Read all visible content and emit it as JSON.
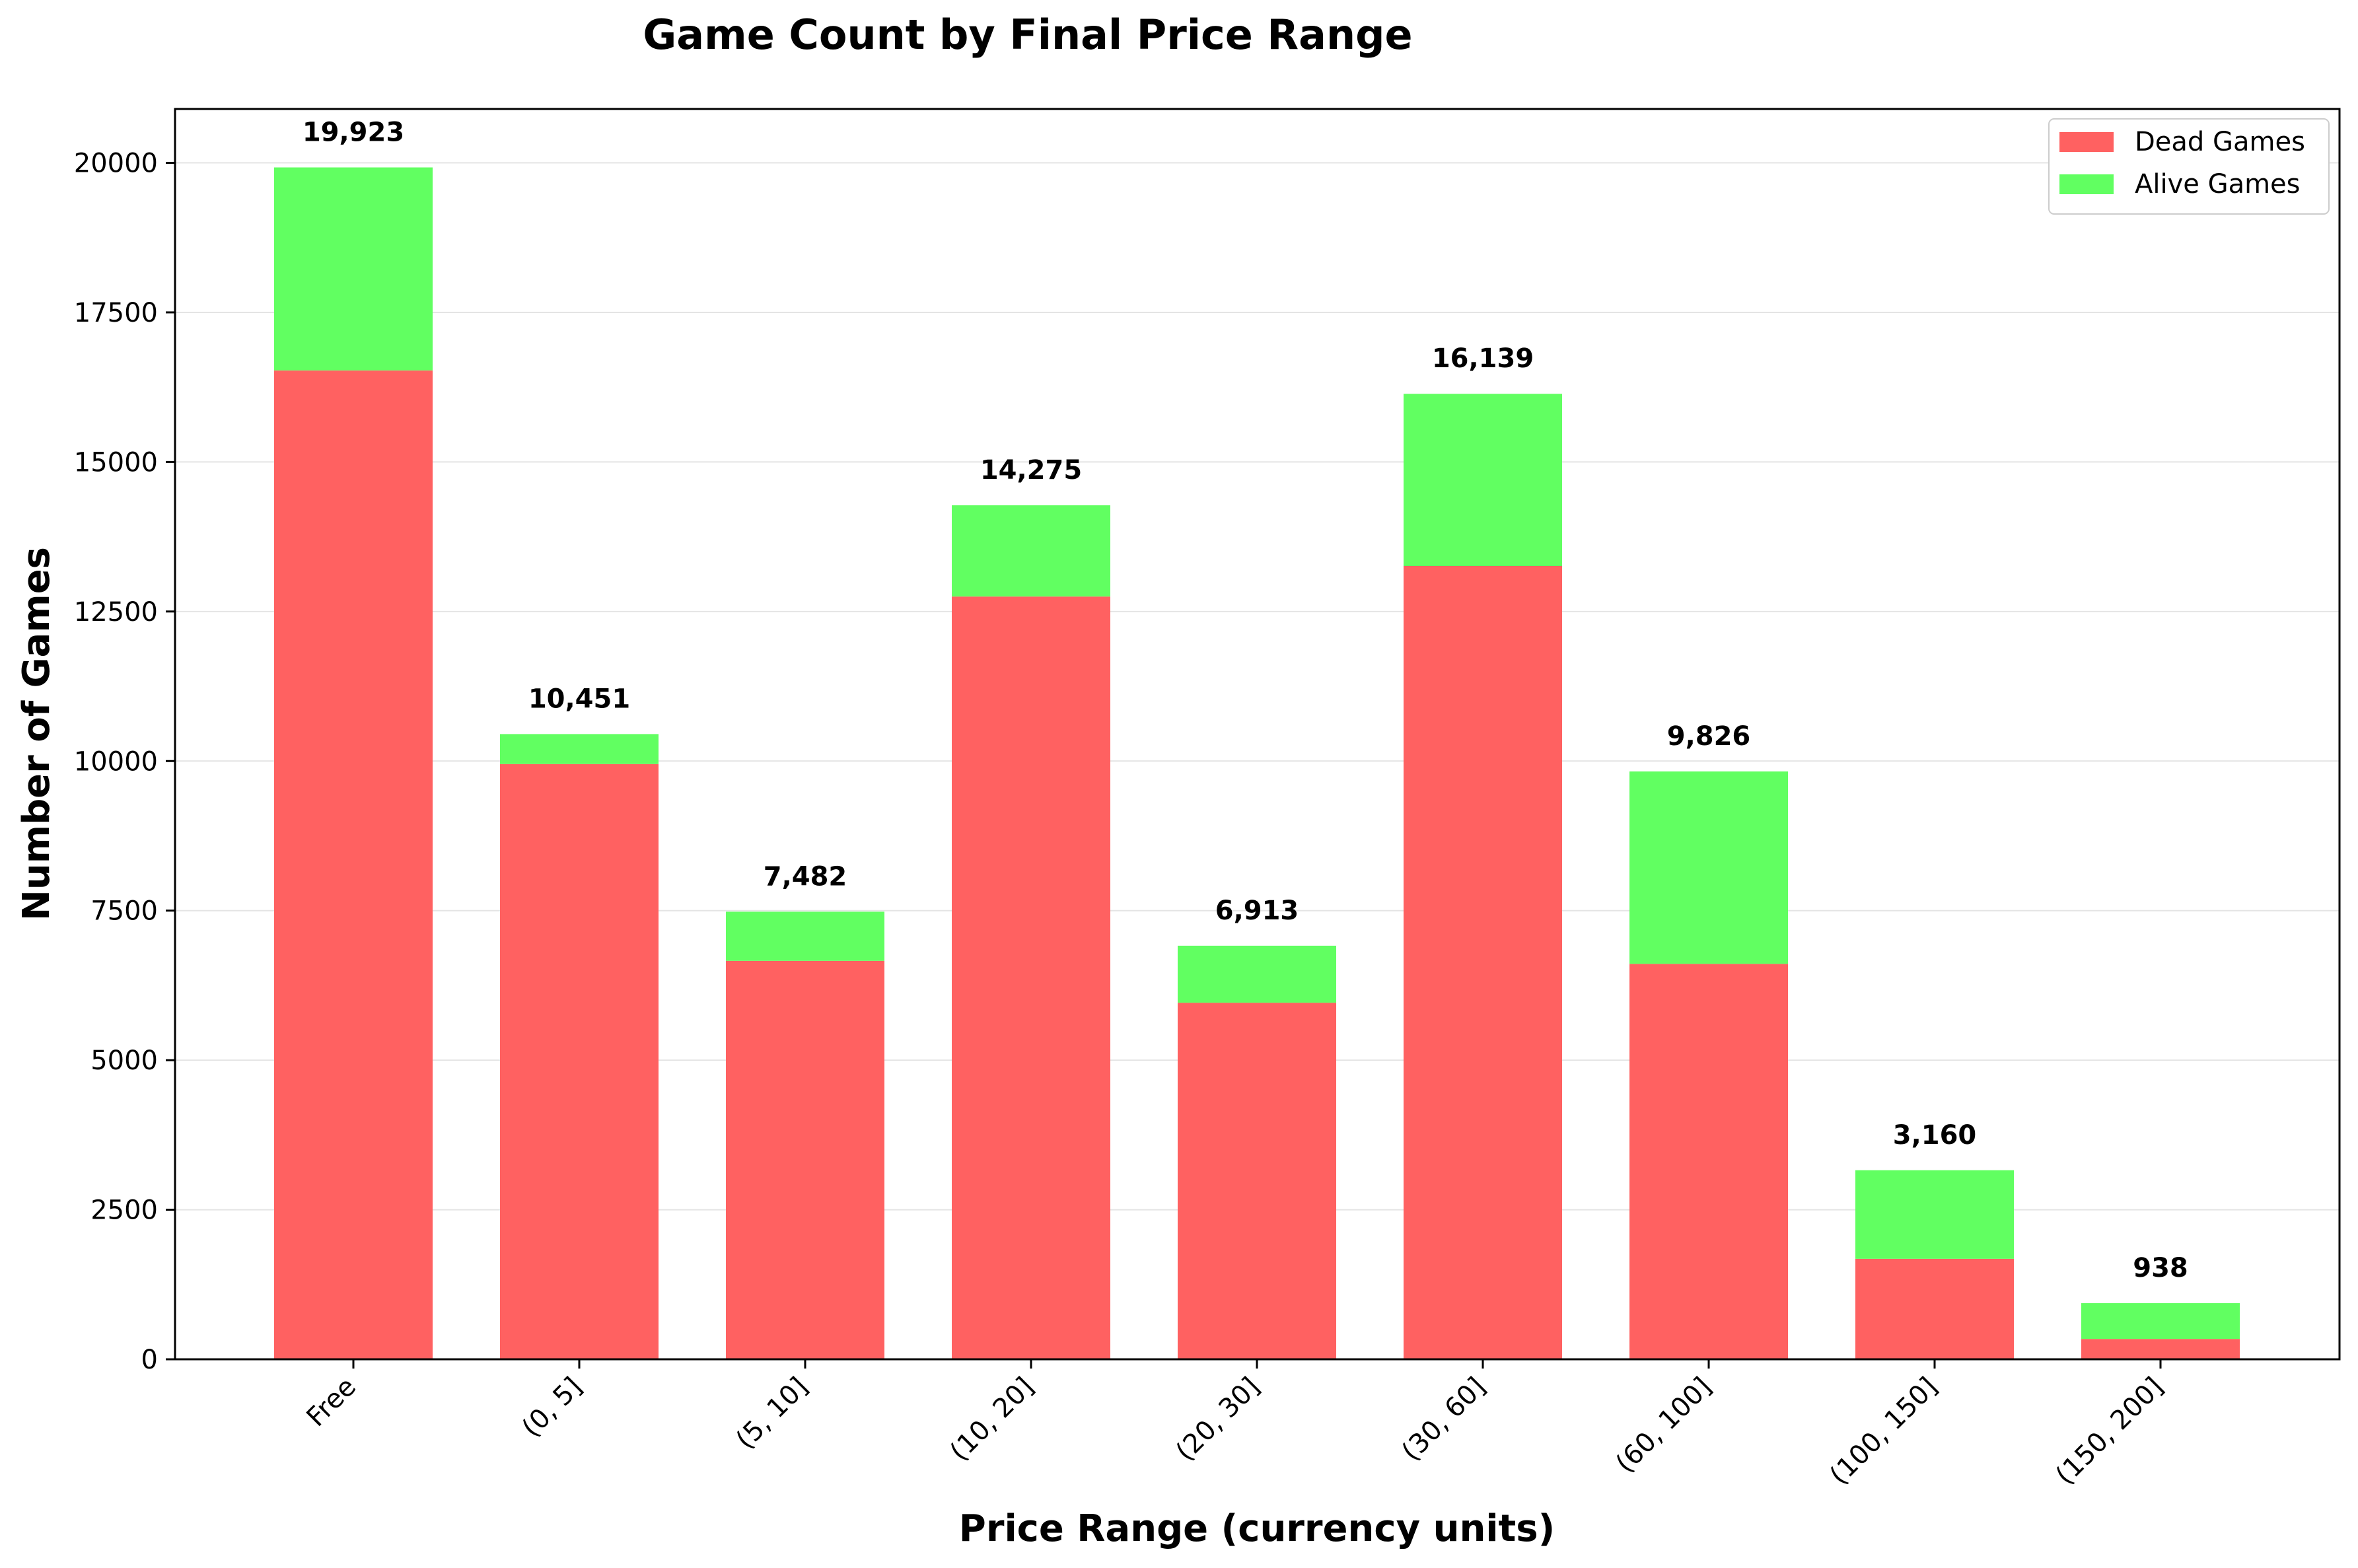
{
  "chart_data": {
    "type": "bar",
    "stacked": true,
    "title": "Game Count by Final Price Range",
    "xlabel": "Price Range (currency units)",
    "ylabel": "Number of Games",
    "categories": [
      "Free",
      "(0, 5]",
      "(5, 10]",
      "(10, 20]",
      "(20, 30]",
      "(30, 60]",
      "(60, 100]",
      "(100, 150]",
      "(150, 200]"
    ],
    "series": [
      {
        "name": "Dead Games",
        "color": "#ff6161",
        "values": [
          16530,
          9950,
          6660,
          12750,
          5960,
          13260,
          6610,
          1680,
          340
        ]
      },
      {
        "name": "Alive Games",
        "color": "#61ff61",
        "values": [
          3393,
          501,
          822,
          1525,
          953,
          2879,
          3216,
          1480,
          598
        ]
      }
    ],
    "totals": [
      19923,
      10451,
      7482,
      14275,
      6913,
      16139,
      9826,
      3160,
      938
    ],
    "total_labels": [
      "19,923",
      "10,451",
      "7,482",
      "14,275",
      "6,913",
      "16,139",
      "9,826",
      "3,160",
      "938"
    ],
    "yticks": [
      0,
      2500,
      5000,
      7500,
      10000,
      12500,
      15000,
      17500,
      20000
    ],
    "ylim": [
      0,
      20900
    ],
    "grid": "y",
    "legend_position": "top-right"
  }
}
